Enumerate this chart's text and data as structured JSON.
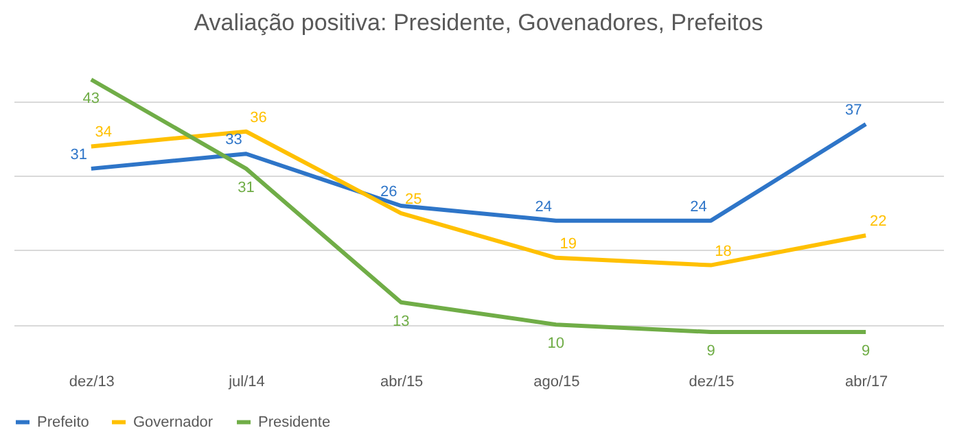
{
  "chart_data": {
    "type": "line",
    "title": "Avaliação positiva: Presidente, Govenadores, Prefeitos",
    "categories": [
      "dez/13",
      "jul/14",
      "abr/15",
      "ago/15",
      "dez/15",
      "abr/17"
    ],
    "series": [
      {
        "name": "Prefeito",
        "color": "#2e75c8",
        "values": [
          31,
          33,
          26,
          24,
          24,
          37
        ]
      },
      {
        "name": "Governador",
        "color": "#ffc000",
        "values": [
          34,
          36,
          25,
          19,
          18,
          22
        ]
      },
      {
        "name": "Presidente",
        "color": "#70ad47",
        "values": [
          43,
          31,
          13,
          10,
          9,
          9
        ]
      }
    ],
    "yticks": [
      {
        "value": 10,
        "label": null
      },
      {
        "value": 20,
        "label": null
      },
      {
        "value": 30,
        "label": null
      },
      {
        "value": 40,
        "label": null
      }
    ],
    "tick_labels": "x",
    "grid": "y",
    "legend": "bottom",
    "data_labels": true,
    "marker": "none",
    "line_style": "solid"
  }
}
